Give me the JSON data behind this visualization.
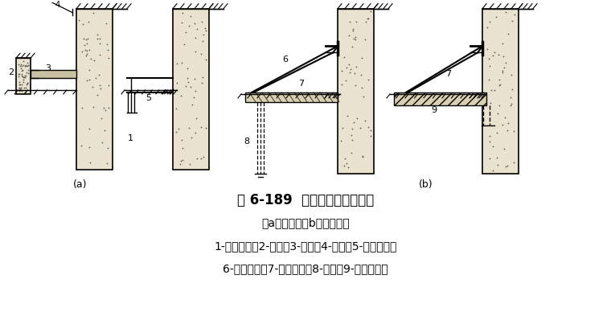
{
  "title": "图 6-189  水泥土墙加临时支撑",
  "subtitle": "（a）对撑；（b）竖向斜撑",
  "legend1": "1-水泥土墙；2-围檩；3-对撑；4-吊索；5-支承型钢；",
  "legend2": "6-竖向斜撑；7-铺地型钢；8-板桩；9-混凝土垫层",
  "label_a": "(a)",
  "label_b": "(b)",
  "bg": "#ffffff",
  "wall_fc": "#e8e2ce",
  "beam_fc": "#c8c0a0",
  "black": "#000000",
  "title_fs": 12,
  "sub_fs": 10,
  "leg_fs": 10,
  "num_fs": 8
}
